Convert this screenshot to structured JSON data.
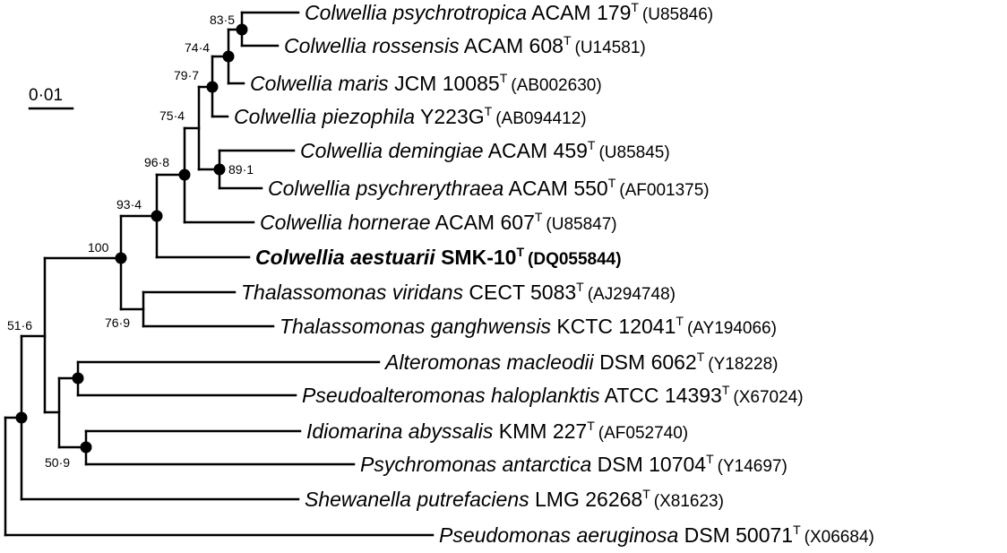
{
  "scale_bar": {
    "label": "0·01"
  },
  "taxa": [
    {
      "genus": "Colwellia",
      "species": "psychrotropica",
      "strain": "ACAM 179",
      "type_mark": "T",
      "accession": "(U85846)",
      "bold": false
    },
    {
      "genus": "Colwellia",
      "species": "rossensis",
      "strain": "ACAM 608",
      "type_mark": "T",
      "accession": "(U14581)",
      "bold": false
    },
    {
      "genus": "Colwellia",
      "species": "maris",
      "strain": "JCM 10085",
      "type_mark": "T",
      "accession": "(AB002630)",
      "bold": false
    },
    {
      "genus": "Colwellia",
      "species": "piezophila",
      "strain": "Y223G",
      "type_mark": "T",
      "accession": "(AB094412)",
      "bold": false
    },
    {
      "genus": "Colwellia",
      "species": "demingiae",
      "strain": "ACAM 459",
      "type_mark": "T",
      "accession": "(U85845)",
      "bold": false
    },
    {
      "genus": "Colwellia",
      "species": "psychrerythraea",
      "strain": "ACAM 550",
      "type_mark": "T",
      "accession": "(AF001375)",
      "bold": false
    },
    {
      "genus": "Colwellia",
      "species": "hornerae",
      "strain": "ACAM 607",
      "type_mark": "T",
      "accession": "(U85847)",
      "bold": false
    },
    {
      "genus": "Colwellia",
      "species": "aestuarii",
      "strain": "SMK-10",
      "type_mark": "T",
      "accession": "(DQ055844)",
      "bold": true
    },
    {
      "genus": "Thalassomonas",
      "species": "viridans",
      "strain": "CECT 5083",
      "type_mark": "T",
      "accession": "(AJ294748)",
      "bold": false
    },
    {
      "genus": "Thalassomonas",
      "species": "ganghwensis",
      "strain": "KCTC 12041",
      "type_mark": "T",
      "accession": "(AY194066)",
      "bold": false
    },
    {
      "genus": "Alteromonas",
      "species": "macleodii",
      "strain": "DSM 6062",
      "type_mark": "T",
      "accession": "(Y18228)",
      "bold": false
    },
    {
      "genus": "Pseudoalteromonas",
      "species": "haloplanktis",
      "strain": "ATCC 14393",
      "type_mark": "T",
      "accession": "(X67024)",
      "bold": false
    },
    {
      "genus": "Idiomarina",
      "species": "abyssalis",
      "strain": "KMM 227",
      "type_mark": "T",
      "accession": "(AF052740)",
      "bold": false
    },
    {
      "genus": "Psychromonas",
      "species": "antarctica",
      "strain": "DSM 10704",
      "type_mark": "T",
      "accession": "(Y14697)",
      "bold": false
    },
    {
      "genus": "Shewanella",
      "species": "putrefaciens",
      "strain": "LMG 26268",
      "type_mark": "T",
      "accession": "(X81623)",
      "bold": false
    },
    {
      "genus": "Pseudomonas",
      "species": "aeruginosa",
      "strain": "DSM 50071",
      "type_mark": "T",
      "accession": "(X06684)",
      "bold": false
    }
  ],
  "bootstrap": {
    "psychrotropica_rossensis": "83·5",
    "with_maris": "74·4",
    "with_piezophila": "79·7",
    "with_demingiae_group": "75·4",
    "demingiae_psychrerythraea": "89·1",
    "with_hornerae": "96·8",
    "with_aestuarii": "93·4",
    "colwellia_thalassomonas": "100",
    "thalassomonas": "76·9",
    "alteromonas_group": "51·6",
    "idiomarina_psychromonas": "50·9"
  }
}
